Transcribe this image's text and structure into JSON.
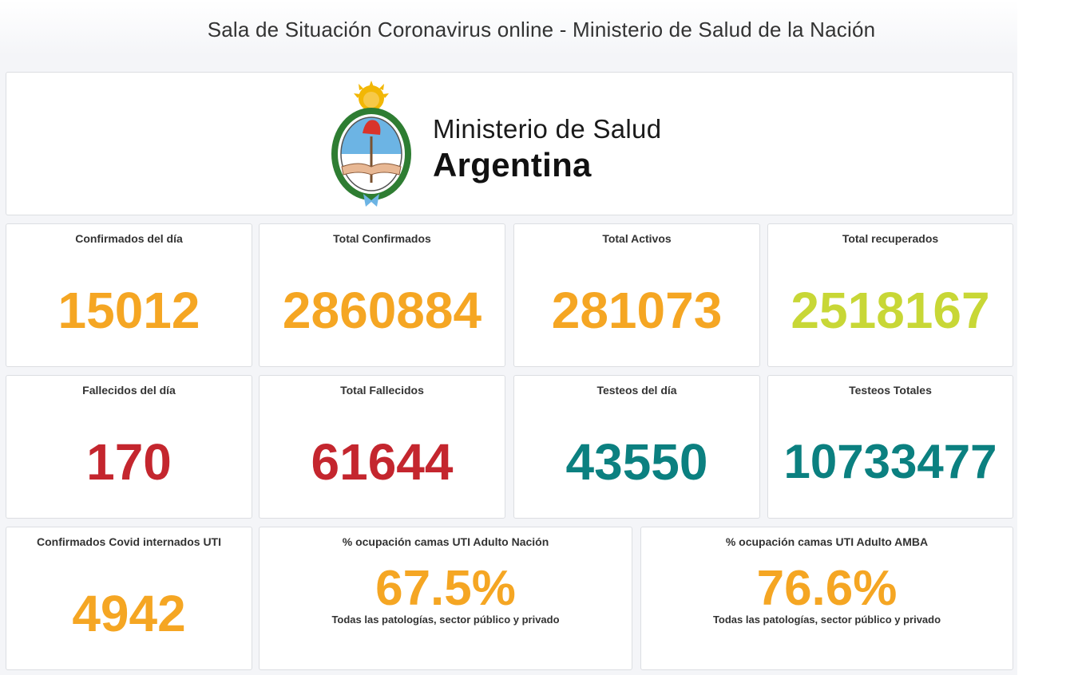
{
  "page": {
    "title": "Sala de Situación Coronavirus online - Ministerio de Salud de la Nación"
  },
  "brand": {
    "ministry": "Ministerio de Salud",
    "country": "Argentina"
  },
  "colors": {
    "orange": "#f5a623",
    "red": "#c4262e",
    "teal": "#0b8080",
    "lime": "#c8d736"
  },
  "stats": [
    {
      "label": "Confirmados del día",
      "value": "15012"
    },
    {
      "label": "Total Confirmados",
      "value": "2860884"
    },
    {
      "label": "Total Activos",
      "value": "281073"
    },
    {
      "label": "Total recuperados",
      "value": "2518167"
    },
    {
      "label": "Fallecidos del día",
      "value": "170"
    },
    {
      "label": "Total Fallecidos",
      "value": "61644"
    },
    {
      "label": "Testeos del día",
      "value": "43550"
    },
    {
      "label": "Testeos Totales",
      "value": "10733477"
    },
    {
      "label": "Confirmados Covid internados UTI",
      "value": "4942"
    }
  ],
  "occupancy": [
    {
      "label": "% ocupación camas UTI Adulto Nación",
      "value": "67.5%",
      "note": "Todas las patologías, sector público y privado"
    },
    {
      "label": "% ocupación camas UTI Adulto AMBA",
      "value": "76.6%",
      "note": "Todas las patologías, sector público y privado"
    }
  ]
}
